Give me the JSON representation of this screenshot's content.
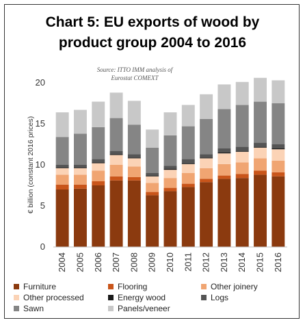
{
  "chart_data": {
    "type": "bar",
    "stacked": true,
    "title": "Chart 5: EU exports of wood by product group 2004 to 2016",
    "title_lines": [
      "Chart 5: EU exports of wood by",
      "product group 2004 to 2016"
    ],
    "source_lines": [
      "Source: ITTO IMM analysis of",
      "Eurostat COMEXT"
    ],
    "xlabel": "",
    "ylabel": "€ billion (constant 2016 prices)",
    "ylim": [
      0,
      20
    ],
    "yticks": [
      0,
      5,
      10,
      15,
      20
    ],
    "grid": false,
    "legend_position": "bottom",
    "categories": [
      "2004",
      "2005",
      "2006",
      "2007",
      "2008",
      "2009",
      "2010",
      "2011",
      "2012",
      "2013",
      "2014",
      "2015",
      "2016"
    ],
    "series": [
      {
        "name": "Furniture",
        "color": "#8B3A0F",
        "values": [
          7.0,
          7.1,
          7.5,
          8.1,
          8.1,
          6.3,
          6.8,
          7.3,
          7.9,
          8.3,
          8.4,
          8.8,
          8.6
        ]
      },
      {
        "name": "Flooring",
        "color": "#C9551A",
        "values": [
          0.6,
          0.5,
          0.5,
          0.5,
          0.4,
          0.4,
          0.4,
          0.4,
          0.4,
          0.4,
          0.5,
          0.5,
          0.5
        ]
      },
      {
        "name": "Other joinery",
        "color": "#F0A572",
        "values": [
          1.2,
          1.2,
          1.3,
          1.4,
          1.3,
          1.1,
          1.2,
          1.3,
          1.3,
          1.4,
          1.4,
          1.5,
          1.4
        ]
      },
      {
        "name": "Other processed",
        "color": "#FBD3B6",
        "values": [
          0.8,
          0.8,
          0.9,
          1.2,
          1.0,
          0.8,
          1.0,
          1.1,
          1.2,
          1.3,
          1.3,
          1.3,
          1.4
        ]
      },
      {
        "name": "Energy wood",
        "color": "#1A1A1A",
        "values": [
          0.1,
          0.1,
          0.1,
          0.1,
          0.1,
          0.1,
          0.1,
          0.1,
          0.1,
          0.1,
          0.1,
          0.1,
          0.1
        ]
      },
      {
        "name": "Logs",
        "color": "#555555",
        "values": [
          0.3,
          0.3,
          0.4,
          0.4,
          0.4,
          0.3,
          0.4,
          0.5,
          0.4,
          0.5,
          0.5,
          0.5,
          0.5
        ]
      },
      {
        "name": "Sawn",
        "color": "#858585",
        "values": [
          3.4,
          3.8,
          3.9,
          4.0,
          3.6,
          3.1,
          3.7,
          4.0,
          4.3,
          4.8,
          5.1,
          5.0,
          5.0
        ]
      },
      {
        "name": "Panels/veneer",
        "color": "#C8C8C8",
        "values": [
          3.0,
          2.9,
          3.1,
          3.1,
          2.9,
          2.2,
          2.8,
          2.6,
          3.0,
          3.0,
          2.8,
          2.9,
          2.8
        ]
      }
    ]
  }
}
